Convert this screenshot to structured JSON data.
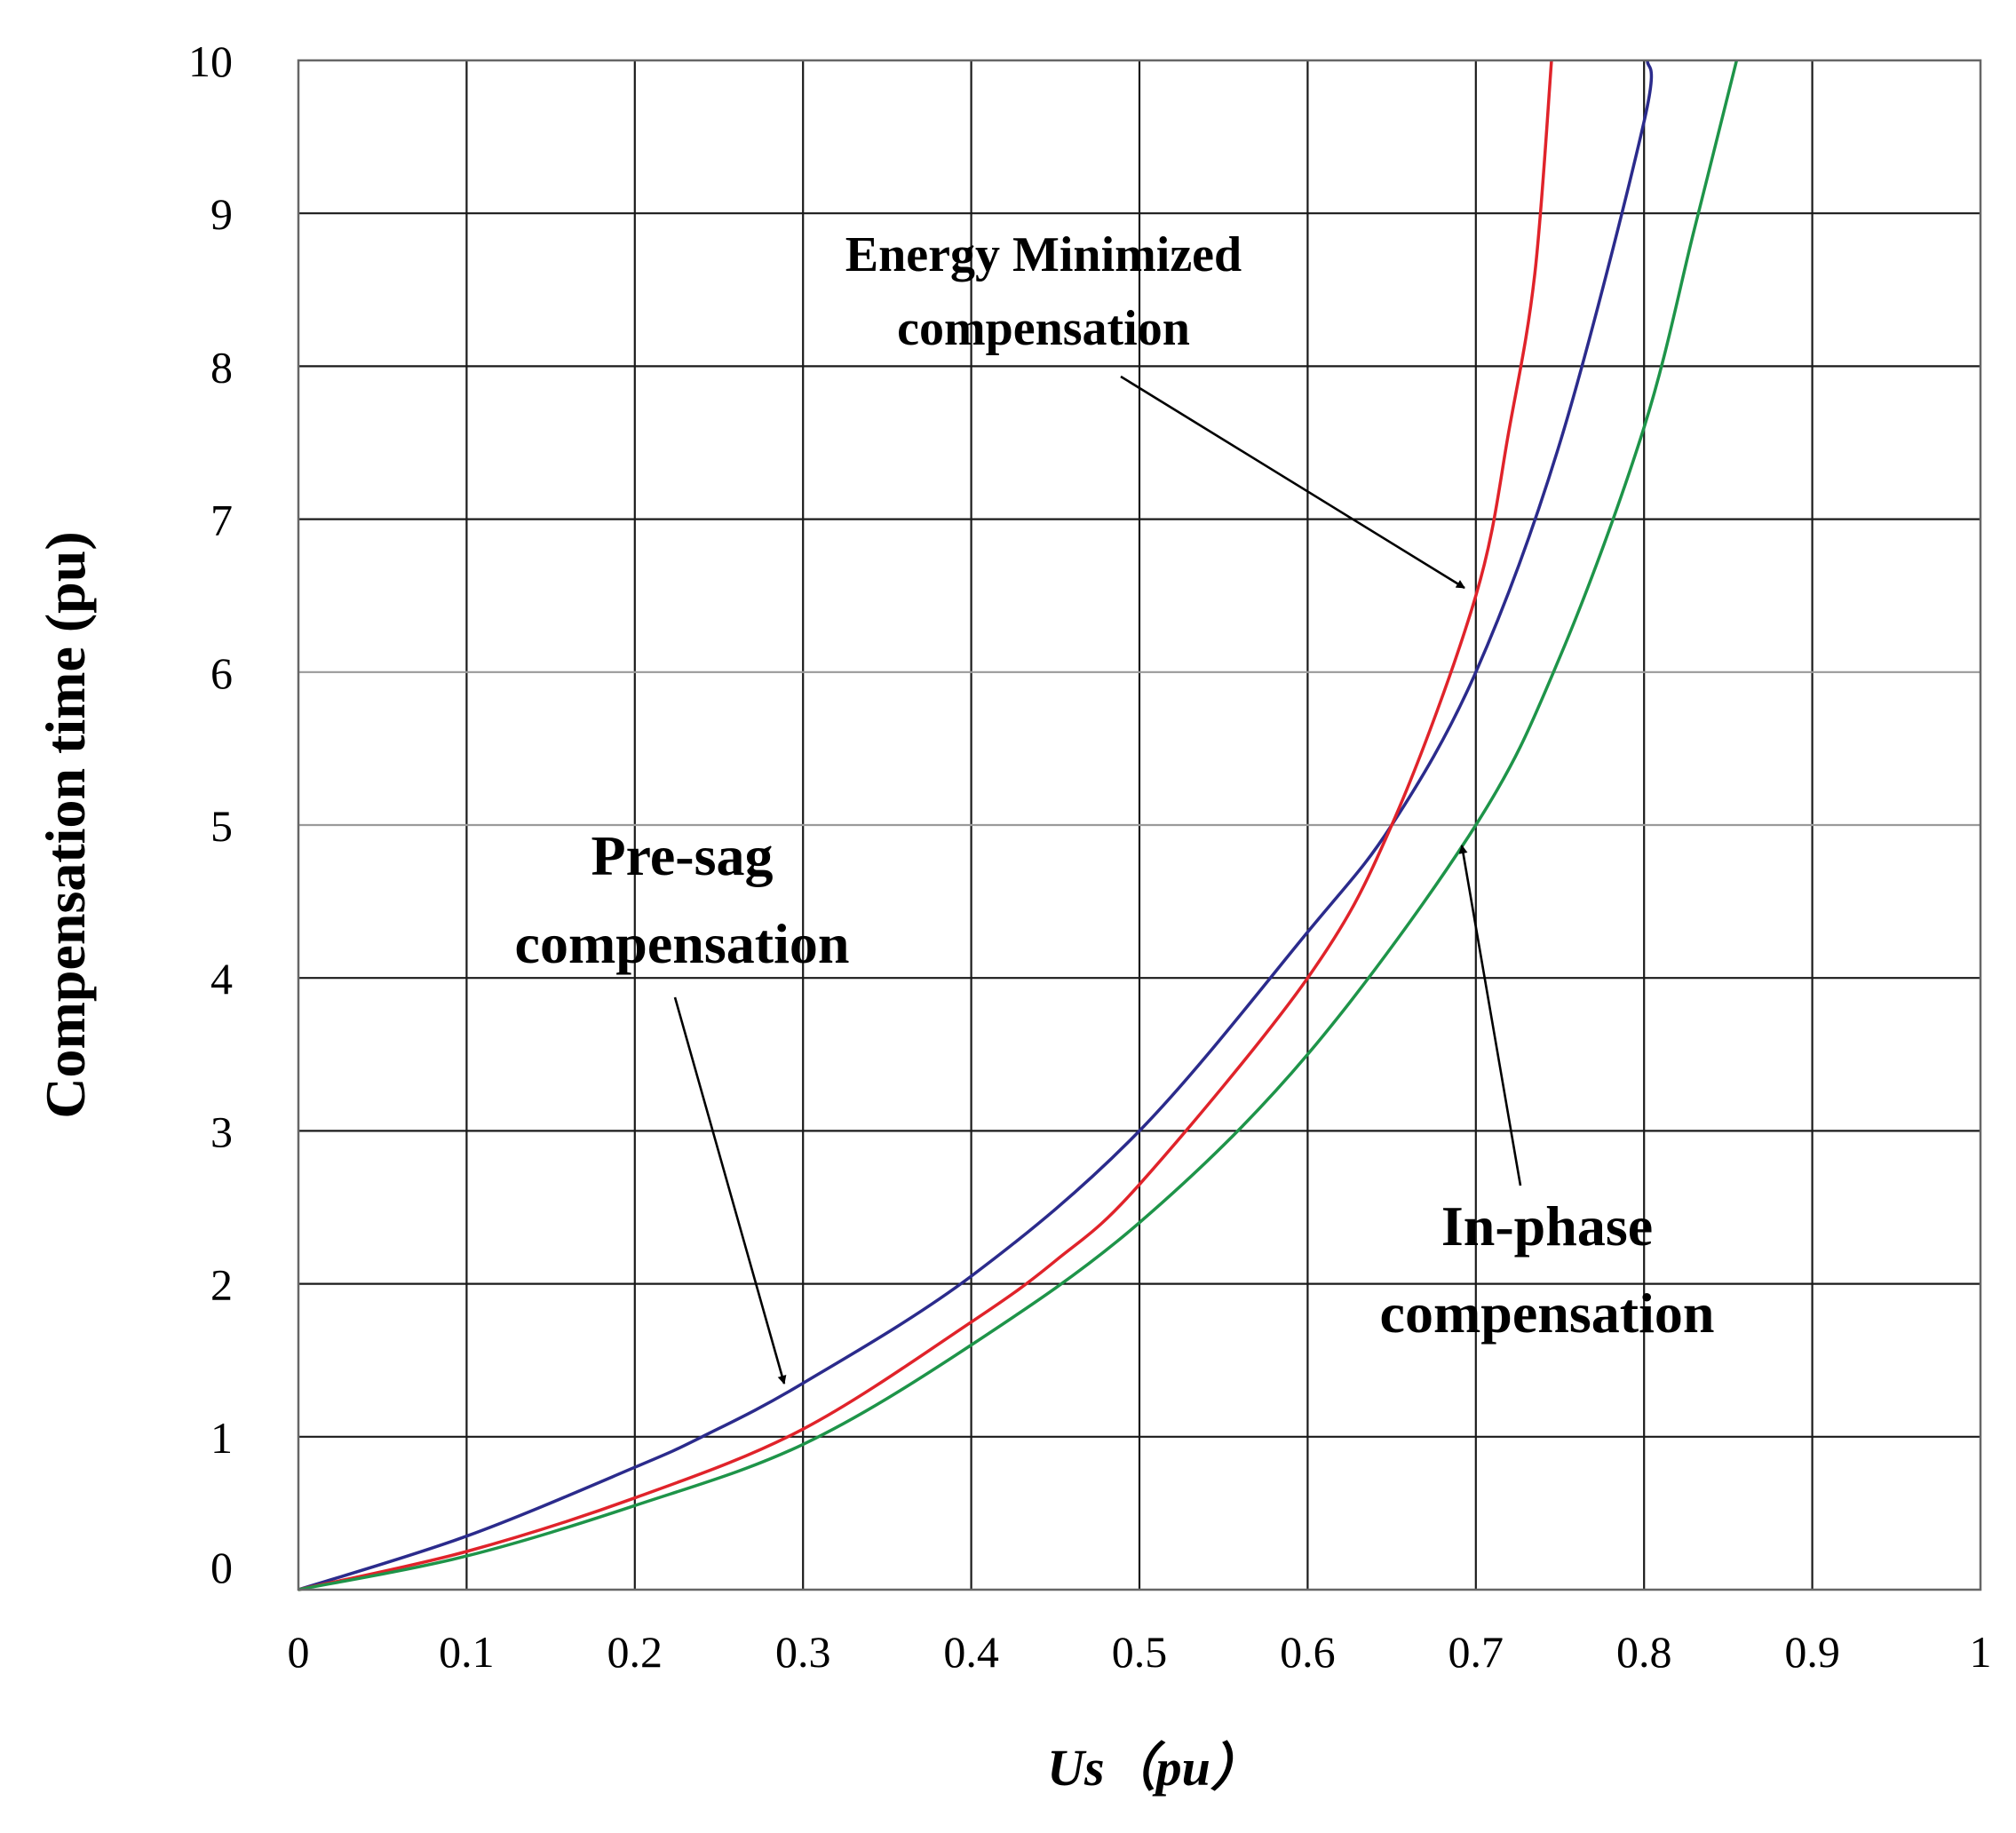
{
  "chart_data": {
    "type": "line",
    "title": "",
    "xlabel": "Us（pu）",
    "ylabel": "Compensation time (pu)",
    "xlim": [
      0,
      1
    ],
    "ylim": [
      0,
      10
    ],
    "x_ticks": [
      "0",
      "0.1",
      "0.2",
      "0.3",
      "0.4",
      "0.5",
      "0.6",
      "0.7",
      "0.8",
      "0.9",
      "1"
    ],
    "y_ticks": [
      "0",
      "1",
      "2",
      "3",
      "4",
      "5",
      "6",
      "7",
      "8",
      "9",
      "10"
    ],
    "grid": true,
    "series": [
      {
        "name": "Pre-sag compensation",
        "color": "#2b2b8c",
        "x": [
          0,
          0.1,
          0.2,
          0.24,
          0.3,
          0.4,
          0.5,
          0.6,
          0.65,
          0.7,
          0.75,
          0.8,
          0.802
        ],
        "y": [
          0,
          0.35,
          0.8,
          1.0,
          1.35,
          2.05,
          3.0,
          4.3,
          5.0,
          6.0,
          7.5,
          9.6,
          10
        ]
      },
      {
        "name": "Energy Minimized compensation",
        "color": "#e0232a",
        "x": [
          0,
          0.1,
          0.2,
          0.3,
          0.4,
          0.45,
          0.5,
          0.6,
          0.65,
          0.7,
          0.72,
          0.735,
          0.745
        ],
        "y": [
          0,
          0.25,
          0.6,
          1.05,
          1.75,
          2.15,
          2.65,
          4.0,
          5.0,
          6.5,
          7.6,
          8.6,
          10
        ]
      },
      {
        "name": "In-phase compensation",
        "color": "#1e9449",
        "x": [
          0,
          0.1,
          0.2,
          0.3,
          0.4,
          0.5,
          0.6,
          0.7,
          0.75,
          0.8,
          0.83,
          0.855
        ],
        "y": [
          0,
          0.22,
          0.55,
          0.95,
          1.6,
          2.4,
          3.5,
          5.0,
          6.1,
          7.6,
          8.9,
          10
        ]
      }
    ],
    "annotations": [
      {
        "lines": [
          "Energy Minimized",
          "compensation"
        ],
        "target": [
          0.69,
          6.5
        ]
      },
      {
        "lines": [
          "Pre-sag",
          "compensation"
        ],
        "target": [
          0.29,
          1.3
        ]
      },
      {
        "lines": [
          "In-phase",
          "compensation"
        ],
        "target": [
          0.7,
          4.9
        ]
      }
    ]
  }
}
